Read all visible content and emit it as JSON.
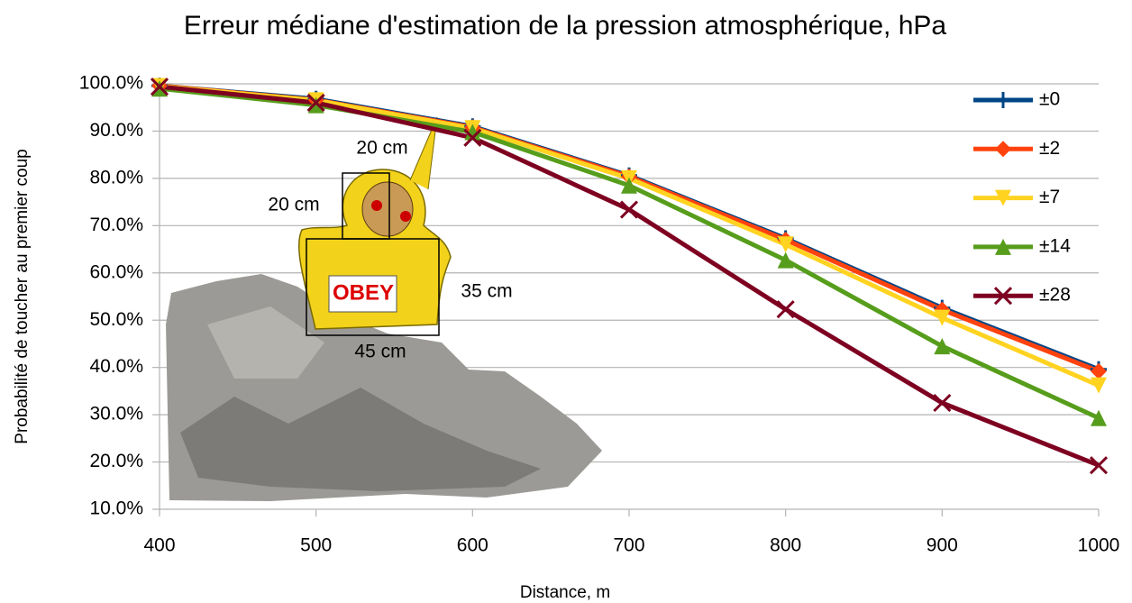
{
  "chart_data": {
    "type": "line",
    "title": "Erreur médiane d'estimation de la pression atmosphérique, hPa",
    "x_label": "Distance, m",
    "y_label": "Probabilité de toucher au premier coup",
    "x": [
      400,
      500,
      600,
      700,
      800,
      900,
      1000
    ],
    "xlim": [
      400,
      1000
    ],
    "xticks": [
      400,
      500,
      600,
      700,
      800,
      900,
      1000
    ],
    "ylim": [
      10,
      100
    ],
    "yticks": [
      {
        "value": 10,
        "label": "10.0%"
      },
      {
        "value": 20,
        "label": "20.0%"
      },
      {
        "value": 30,
        "label": "30.0%"
      },
      {
        "value": 40,
        "label": "40.0%"
      },
      {
        "value": 50,
        "label": "50.0%"
      },
      {
        "value": 60,
        "label": "60.0%"
      },
      {
        "value": 70,
        "label": "70.0%"
      },
      {
        "value": 80,
        "label": "80.0%"
      },
      {
        "value": 90,
        "label": "90.0%"
      },
      {
        "value": 100,
        "label": "100.0%"
      }
    ],
    "grid": true,
    "legend": "right",
    "series": [
      {
        "name": "±0",
        "color": "#004586",
        "marker": "plus",
        "values": [
          99.6,
          96.8,
          91,
          80.6,
          67.3,
          52.6,
          39.6
        ]
      },
      {
        "name": "±2",
        "color": "#ff420e",
        "marker": "diamond",
        "values": [
          99.6,
          96.6,
          90.8,
          80.4,
          67,
          52.2,
          39.2
        ]
      },
      {
        "name": "±7",
        "color": "#ffd320",
        "marker": "triangle-down",
        "values": [
          99.5,
          96.5,
          90.6,
          80,
          66,
          50.5,
          36.2
        ]
      },
      {
        "name": "±14",
        "color": "#579d1c",
        "marker": "triangle-up",
        "values": [
          99,
          95.5,
          89.8,
          78.5,
          62.7,
          44.5,
          29.3
        ]
      },
      {
        "name": "±28",
        "color": "#7e0021",
        "marker": "cross",
        "values": [
          99.4,
          96,
          88.6,
          73.4,
          52.3,
          32.5,
          19.3
        ]
      }
    ],
    "annotations": [
      "20 cm",
      "20 cm",
      "35 cm",
      "45 cm",
      "OBEY"
    ]
  }
}
